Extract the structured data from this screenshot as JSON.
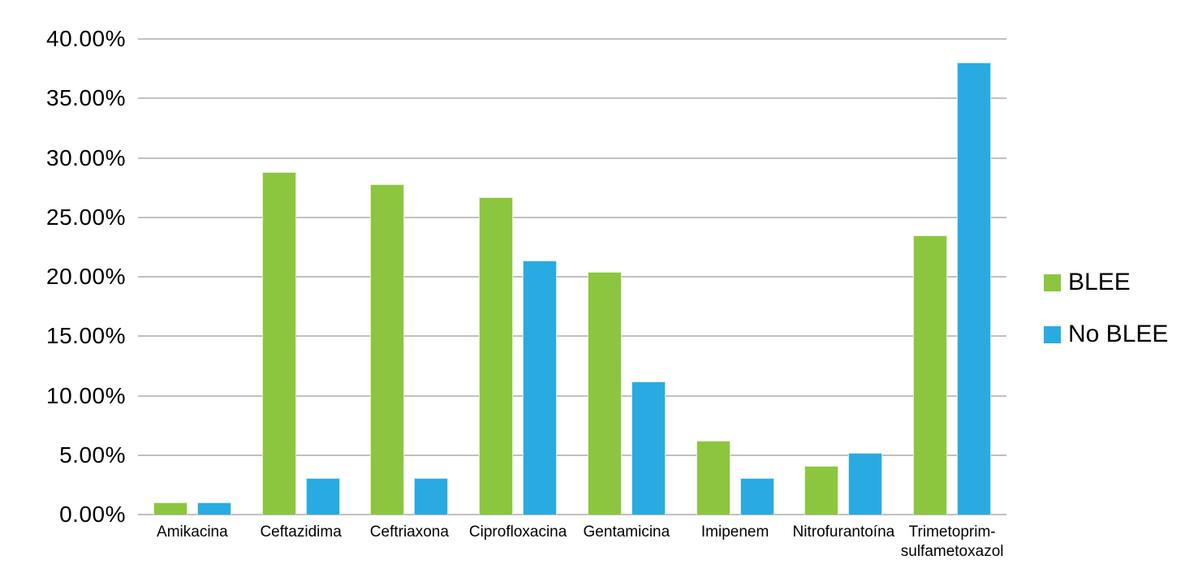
{
  "chart_data": {
    "type": "bar",
    "title": "",
    "xlabel": "",
    "ylabel": "",
    "categories": [
      "Amikacina",
      "Ceftazidima",
      "Ceftriaxona",
      "Ciprofloxacina",
      "Gentamicina",
      "Imipenem",
      "Nitrofurantoína",
      "Trimetoprim-sulfametoxazol"
    ],
    "series": [
      {
        "name": "BLEE",
        "color": "#8CC63F",
        "values": [
          1.0,
          28.8,
          27.8,
          26.7,
          20.4,
          6.2,
          4.1,
          23.5
        ]
      },
      {
        "name": "No BLEE",
        "color": "#29ABE2",
        "values": [
          1.0,
          3.1,
          3.1,
          21.4,
          11.2,
          3.1,
          5.2,
          38.0
        ]
      }
    ],
    "ylim": [
      0,
      40
    ],
    "y_tick_step": 5,
    "y_tick_labels": [
      "0.00%",
      "5.00%",
      "10.00%",
      "15.00%",
      "20.00%",
      "25.00%",
      "30.00%",
      "35.00%",
      "40.00%"
    ],
    "grid": true,
    "gridline_color": "#C0C0C0",
    "background_color": "#FFFFFF",
    "legend_position": "right"
  }
}
